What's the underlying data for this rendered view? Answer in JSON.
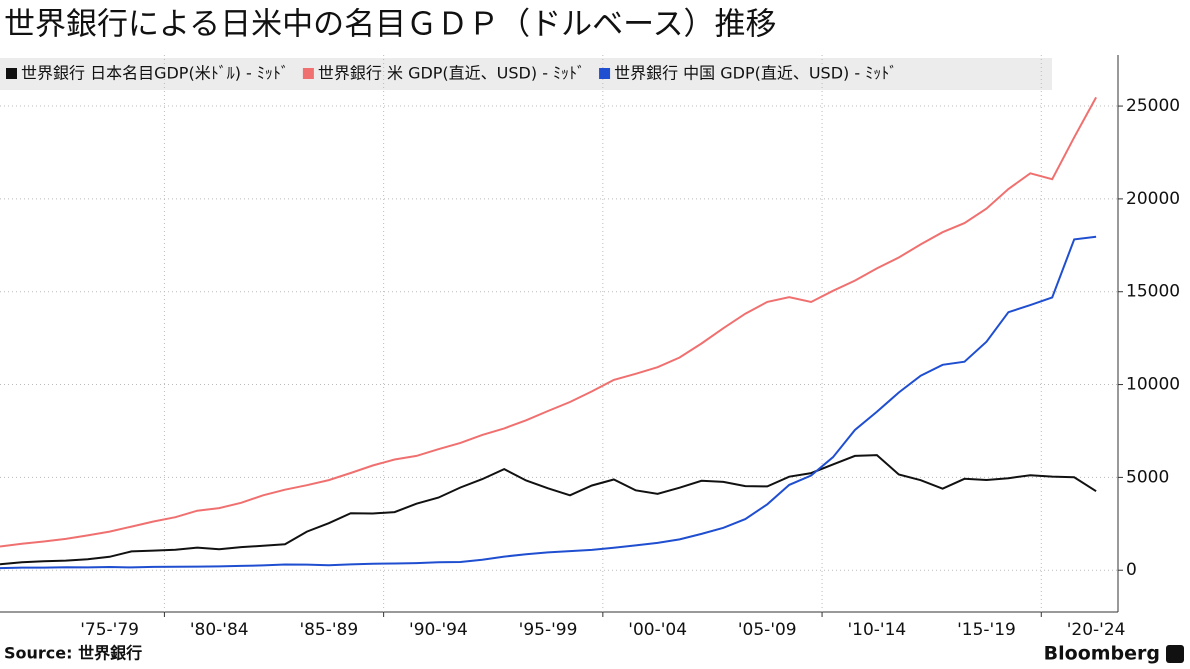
{
  "chart_data": {
    "type": "line",
    "title": "世界銀行による日米中の名目ＧＤＰ（ドルベース）推移",
    "source": "Source: 世界銀行",
    "brand": "Bloomberg",
    "x": [
      1972,
      1973,
      1974,
      1975,
      1976,
      1977,
      1978,
      1979,
      1980,
      1981,
      1982,
      1983,
      1984,
      1985,
      1986,
      1987,
      1988,
      1989,
      1990,
      1991,
      1992,
      1993,
      1994,
      1995,
      1996,
      1997,
      1998,
      1999,
      2000,
      2001,
      2002,
      2003,
      2004,
      2005,
      2006,
      2007,
      2008,
      2009,
      2010,
      2011,
      2012,
      2013,
      2014,
      2015,
      2016,
      2017,
      2018,
      2019,
      2020,
      2021,
      2022
    ],
    "series": [
      {
        "name": "世界銀行 日本名目GDP(米ﾄﾞﾙ) - ﾐｯﾄﾞ",
        "color": "#111111",
        "values": [
          318,
          432,
          479,
          521,
          586,
          721,
          1014,
          1055,
          1105,
          1218,
          1134,
          1243,
          1318,
          1399,
          2079,
          2533,
          3071,
          3054,
          3133,
          3584,
          3909,
          4454,
          4907,
          5449,
          4833,
          4415,
          4033,
          4562,
          4888,
          4304,
          4115,
          4446,
          4815,
          4755,
          4530,
          4515,
          5038,
          5231,
          5700,
          6157,
          6203,
          5156,
          4850,
          4389,
          4926,
          4860,
          4955,
          5118,
          5040,
          5006,
          4256
        ]
      },
      {
        "name": "世界銀行 米 GDP(直近、USD) - ﾐｯﾄﾞ",
        "color": "#f07070",
        "values": [
          1280,
          1425,
          1545,
          1685,
          1873,
          2082,
          2352,
          2627,
          2857,
          3207,
          3344,
          3634,
          4037,
          4339,
          4580,
          4855,
          5236,
          5642,
          5963,
          6158,
          6520,
          6858,
          7287,
          7640,
          8073,
          8578,
          9063,
          9631,
          10251,
          10582,
          10936,
          11458,
          12214,
          13037,
          13815,
          14452,
          14713,
          14449,
          15049,
          15600,
          16254,
          16843,
          17551,
          18206,
          18695,
          19477,
          20533,
          21381,
          21060,
          23315,
          25464
        ]
      },
      {
        "name": "世界銀行 中国 GDP(直近、USD) - ﾐｯﾄﾞ",
        "color": "#1f4fd0",
        "values": [
          114,
          139,
          144,
          163,
          154,
          175,
          150,
          179,
          191,
          196,
          205,
          231,
          260,
          310,
          301,
          273,
          313,
          348,
          361,
          383,
          427,
          445,
          564,
          734,
          864,
          962,
          1029,
          1094,
          1211,
          1339,
          1471,
          1660,
          1955,
          2286,
          2752,
          3550,
          4594,
          5102,
          6087,
          7552,
          8532,
          9570,
          10476,
          11062,
          11233,
          12310,
          13895,
          14280,
          14688,
          17820,
          17963
        ]
      }
    ],
    "xlim": [
      1972,
      2023
    ],
    "xticks": [
      {
        "value": 1977,
        "label": "'75-'79"
      },
      {
        "value": 1982,
        "label": "'80-'84"
      },
      {
        "value": 1987,
        "label": "'85-'89"
      },
      {
        "value": 1992,
        "label": "'90-'94"
      },
      {
        "value": 1997,
        "label": "'95-'99"
      },
      {
        "value": 2002,
        "label": "'00-'04"
      },
      {
        "value": 2007,
        "label": "'05-'09"
      },
      {
        "value": 2012,
        "label": "'10-'14"
      },
      {
        "value": 2017,
        "label": "'15-'19"
      },
      {
        "value": 2022,
        "label": "'20-'24"
      }
    ],
    "ylim": [
      -2250,
      27750
    ],
    "yticks": [
      0,
      5000,
      10000,
      15000,
      20000,
      25000
    ],
    "grid": true
  }
}
